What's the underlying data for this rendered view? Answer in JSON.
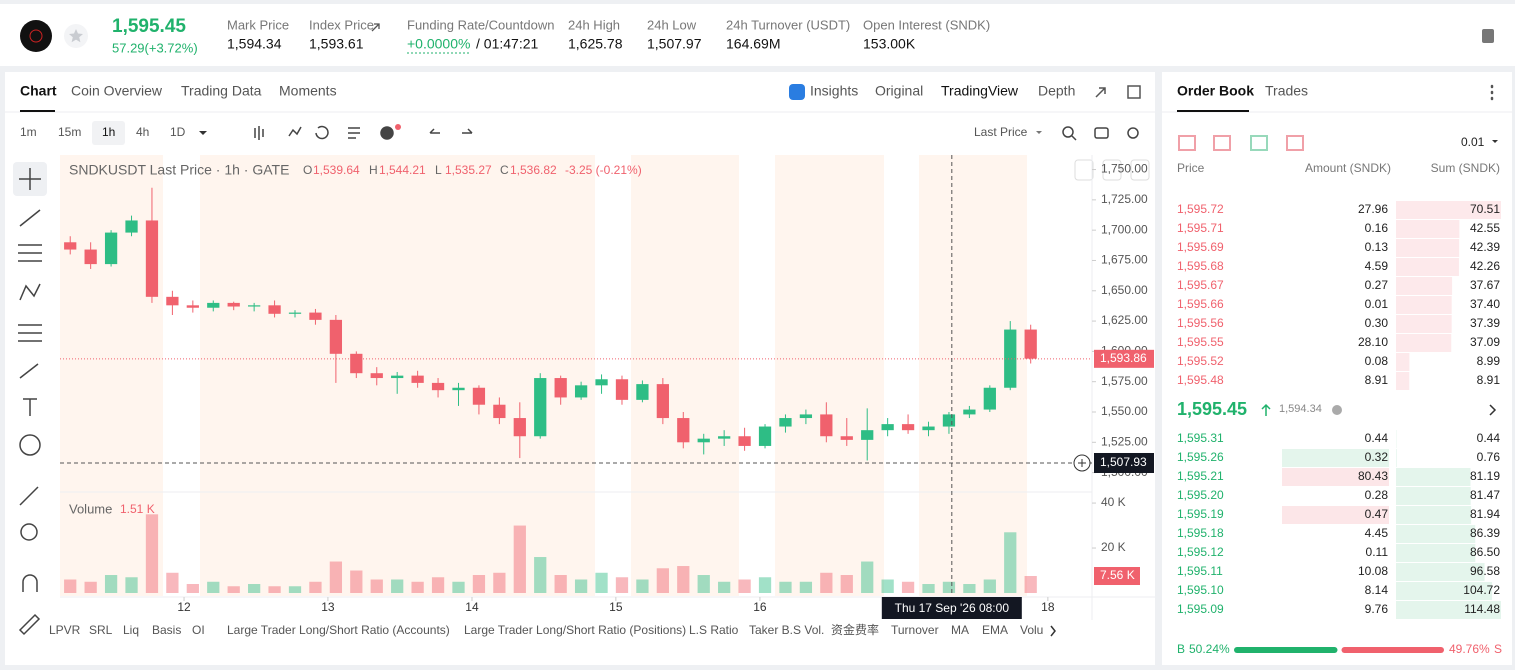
{
  "header": {
    "price": "1,595.45",
    "change": "57.29(+3.72%)",
    "stats": [
      {
        "label": "Mark Price",
        "value": "1,594.34"
      },
      {
        "label": "Index Price",
        "value": "1,593.61"
      },
      {
        "label": "Funding Rate/Countdown",
        "value": "+0.0000%",
        "countdown": "/ 01:47:21"
      },
      {
        "label": "24h High",
        "value": "1,625.78"
      },
      {
        "label": "24h Low",
        "value": "1,507.97"
      },
      {
        "label": "24h Turnover (USDT)",
        "value": "164.69M"
      },
      {
        "label": "Open Interest (SNDK)",
        "value": "153.00K"
      }
    ]
  },
  "chart_panel": {
    "tabs": [
      "Chart",
      "Coin Overview",
      "Trading Data",
      "Moments"
    ],
    "view_tabs": [
      "Insights",
      "Original",
      "TradingView",
      "Depth"
    ],
    "intervals": [
      "1m",
      "15m",
      "1h",
      "4h",
      "1D"
    ],
    "price_source": "Last Price",
    "indicators": [
      "LPVR",
      "SRL",
      "Liq",
      "Basis",
      "OI",
      "Large Trader Long/Short Ratio (Accounts)",
      "Large Trader Long/Short Ratio (Positions)",
      "L.S Ratio",
      "Taker B.S Vol.",
      "资金费率",
      "Turnover",
      "MA",
      "EMA",
      "Volu"
    ]
  },
  "chart_data": {
    "type": "candlestick",
    "title": "SNDKUSDT Last Price · 1h · GATE",
    "ohlc_legend": [
      {
        "key": "O",
        "value": "1,539.64"
      },
      {
        "key": "H",
        "value": "1,544.21"
      },
      {
        "key": "L",
        "value": "1,535.27"
      },
      {
        "key": "C",
        "value": "1,536.82"
      }
    ],
    "change": "-3.25 (-0.21%)",
    "volume_title": "Volume",
    "volume_legend": "1.51 K",
    "open": [
      1690,
      1684,
      1672,
      1698,
      1708,
      1645,
      1638,
      1636,
      1640,
      1637,
      1638,
      1631,
      1632,
      1626,
      1598,
      1582,
      1578,
      1580,
      1574,
      1568,
      1570,
      1556,
      1545,
      1530,
      1578,
      1562,
      1572,
      1577,
      1560,
      1573,
      1545,
      1525,
      1528,
      1530,
      1522,
      1538,
      1545,
      1548,
      1530,
      1527,
      1535,
      1540,
      1535,
      1538,
      1548,
      1552,
      1570,
      1618
    ],
    "high": [
      1695,
      1690,
      1700,
      1712,
      1735,
      1650,
      1642,
      1642,
      1641,
      1640,
      1642,
      1634,
      1635,
      1630,
      1600,
      1587,
      1583,
      1584,
      1578,
      1574,
      1572,
      1562,
      1558,
      1582,
      1580,
      1575,
      1581,
      1580,
      1576,
      1578,
      1550,
      1532,
      1535,
      1537,
      1540,
      1548,
      1552,
      1558,
      1545,
      1553,
      1545,
      1548,
      1542,
      1550,
      1555,
      1572,
      1625,
      1622
    ],
    "low": [
      1680,
      1668,
      1670,
      1695,
      1640,
      1630,
      1632,
      1633,
      1634,
      1633,
      1628,
      1628,
      1622,
      1574,
      1578,
      1572,
      1565,
      1570,
      1562,
      1555,
      1548,
      1540,
      1512,
      1528,
      1556,
      1560,
      1565,
      1556,
      1558,
      1540,
      1520,
      1515,
      1522,
      1518,
      1520,
      1533,
      1540,
      1525,
      1522,
      1510,
      1530,
      1532,
      1530,
      1532,
      1545,
      1550,
      1568,
      1590
    ],
    "close": [
      1684,
      1672,
      1698,
      1708,
      1645,
      1638,
      1636,
      1640,
      1637,
      1638,
      1631,
      1632,
      1626,
      1598,
      1582,
      1578,
      1580,
      1574,
      1568,
      1570,
      1556,
      1545,
      1530,
      1578,
      1562,
      1572,
      1577,
      1560,
      1573,
      1545,
      1525,
      1528,
      1530,
      1522,
      1538,
      1545,
      1548,
      1530,
      1527,
      1535,
      1540,
      1535,
      1538,
      1548,
      1552,
      1570,
      1618,
      1594
    ],
    "volume": [
      6000,
      5000,
      8000,
      7000,
      35000,
      9000,
      4000,
      5000,
      3000,
      4000,
      3000,
      3000,
      5000,
      14000,
      10000,
      6000,
      6000,
      5000,
      7000,
      5000,
      8000,
      9000,
      30000,
      16000,
      8000,
      6000,
      9000,
      7000,
      6000,
      11000,
      12000,
      8000,
      5000,
      6000,
      7000,
      5000,
      5000,
      9000,
      8000,
      14000,
      6000,
      5000,
      4000,
      5000,
      4000,
      6000,
      27000,
      7560
    ],
    "ylim": [
      1484,
      1762
    ],
    "yticks": [
      {
        "value": 1750,
        "label": "1,750.00"
      },
      {
        "value": 1725,
        "label": "1,725.00"
      },
      {
        "value": 1700,
        "label": "1,700.00"
      },
      {
        "value": 1675,
        "label": "1,675.00"
      },
      {
        "value": 1650,
        "label": "1,650.00"
      },
      {
        "value": 1625,
        "label": "1,625.00"
      },
      {
        "value": 1600,
        "label": "1,600.00"
      },
      {
        "value": 1575,
        "label": "1,575.00"
      },
      {
        "value": 1550,
        "label": "1,550.00"
      },
      {
        "value": 1525,
        "label": "1,525.00"
      },
      {
        "value": 1500,
        "label": "1,500.00"
      }
    ],
    "y2lim": [
      0,
      42700
    ],
    "y2ticks": [
      {
        "value": 40000,
        "label": "40 K"
      },
      {
        "value": 20000,
        "label": "20 K"
      }
    ],
    "xlim": [
      -0.5,
      50
    ],
    "xticks": [
      {
        "value": 5.57,
        "label": "12"
      },
      {
        "value": 12.61,
        "label": "13"
      },
      {
        "value": 19.66,
        "label": "14"
      },
      {
        "value": 26.7,
        "label": "15"
      },
      {
        "value": 33.75,
        "label": "16"
      },
      {
        "value": 47.84,
        "label": "18"
      }
    ],
    "last_price": {
      "value": 1593.86,
      "label": "1,593.86"
    },
    "crosshair": {
      "x": 43.14,
      "y": {
        "value": 1507.93,
        "label": "1,507.93"
      },
      "time": "Thu 17 Sep '26   08:00"
    },
    "volume_tag": {
      "value": 7560,
      "label": "7.56 K"
    },
    "up_color": "#2ebd85",
    "down_color": "#f0616d"
  },
  "order_book": {
    "tabs": [
      "Order Book",
      "Trades"
    ],
    "precision": "0.01",
    "columns": [
      "Price",
      "Amount (SNDK)",
      "Sum (SNDK)"
    ],
    "asks": [
      [
        "1,595.72",
        "27.96",
        "70.51"
      ],
      [
        "1,595.71",
        "0.16",
        "42.55"
      ],
      [
        "1,595.69",
        "0.13",
        "42.39"
      ],
      [
        "1,595.68",
        "4.59",
        "42.26"
      ],
      [
        "1,595.67",
        "0.27",
        "37.67"
      ],
      [
        "1,595.66",
        "0.01",
        "37.40"
      ],
      [
        "1,595.56",
        "0.30",
        "37.39"
      ],
      [
        "1,595.55",
        "28.10",
        "37.09"
      ],
      [
        "1,595.52",
        "0.08",
        "8.99"
      ],
      [
        "1,595.48",
        "8.91",
        "8.91"
      ]
    ],
    "mid_price": "1,595.45",
    "mark_price": "1,594.34",
    "bids": [
      [
        "1,595.31",
        "0.44",
        "0.44"
      ],
      [
        "1,595.26",
        "0.32",
        "0.76"
      ],
      [
        "1,595.21",
        "80.43",
        "81.19"
      ],
      [
        "1,595.20",
        "0.28",
        "81.47"
      ],
      [
        "1,595.19",
        "0.47",
        "81.94"
      ],
      [
        "1,595.18",
        "4.45",
        "86.39"
      ],
      [
        "1,595.12",
        "0.11",
        "86.50"
      ],
      [
        "1,595.11",
        "10.08",
        "96.58"
      ],
      [
        "1,595.10",
        "8.14",
        "104.72"
      ],
      [
        "1,595.09",
        "9.76",
        "114.48"
      ]
    ],
    "buy_label": "B",
    "buy_ratio": {
      "value": 50.24,
      "label": "50.24%"
    },
    "sell_ratio": {
      "value": 49.76,
      "label": "49.76%"
    },
    "sell_label": "S"
  }
}
